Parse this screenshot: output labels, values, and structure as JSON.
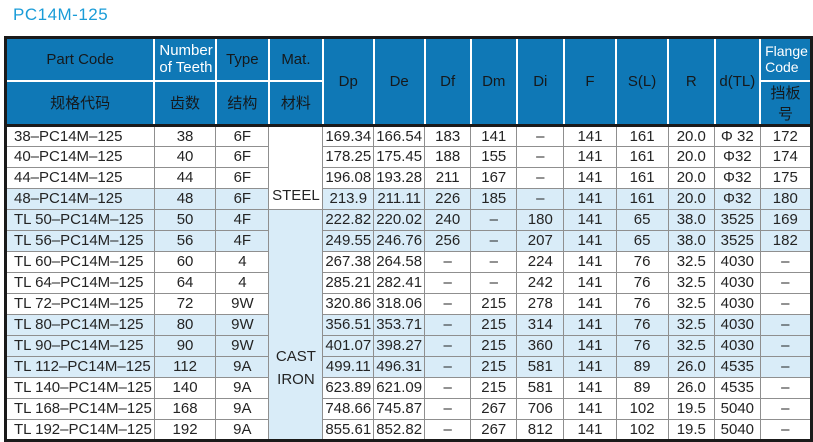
{
  "title": "PC14M-125",
  "colors": {
    "header_blue": "#0f78b6",
    "title_blue": "#1a9cd8",
    "band_blue": "#d9ecf8",
    "grid_line": "#8f8f8f",
    "frame": "#1a1a1a"
  },
  "table": {
    "header": {
      "part_code": {
        "en": "Part Code",
        "zh": "规格代码"
      },
      "teeth": {
        "line1": "Number",
        "line2": "of Teeth",
        "zh": "齿数"
      },
      "type": {
        "en": "Type",
        "zh": "结构"
      },
      "mat": {
        "en": "Mat.",
        "zh": "材料"
      },
      "dp": "Dp",
      "de": "De",
      "df": "Df",
      "dm": "Dm",
      "di": "Di",
      "f": "F",
      "sl": "S(L)",
      "r": "R",
      "dtl": "d(TL)",
      "flange": {
        "line1": "Flange",
        "line2": "Code",
        "zh": "挡板号"
      }
    },
    "column_ids": [
      "part-code",
      "teeth",
      "type",
      "dp",
      "de",
      "df",
      "dm",
      "di",
      "f",
      "sl",
      "r",
      "dtl",
      "flange"
    ],
    "materials": [
      {
        "start": 0,
        "end": 3,
        "lines": [
          "STEEL"
        ],
        "class": "mat-steel"
      },
      {
        "start": 4,
        "end": 14,
        "lines": [
          "CAST",
          "IRON"
        ],
        "class": "mat-cast"
      }
    ],
    "banded_rows": [
      3,
      4,
      5,
      9,
      10,
      11
    ],
    "rows": [
      [
        "38–PC14M–125",
        "38",
        "6F",
        "169.34",
        "166.54",
        "183",
        "141",
        "–",
        "141",
        "161",
        "20.0",
        "Φ 32",
        "172"
      ],
      [
        "40–PC14M–125",
        "40",
        "6F",
        "178.25",
        "175.45",
        "188",
        "155",
        "–",
        "141",
        "161",
        "20.0",
        "Φ32",
        "174"
      ],
      [
        "44–PC14M–125",
        "44",
        "6F",
        "196.08",
        "193.28",
        "211",
        "167",
        "–",
        "141",
        "161",
        "20.0",
        "Φ32",
        "175"
      ],
      [
        "48–PC14M–125",
        "48",
        "6F",
        "213.9",
        "211.11",
        "226",
        "185",
        "–",
        "141",
        "161",
        "20.0",
        "Φ32",
        "180"
      ],
      [
        "TL 50–PC14M–125",
        "50",
        "4F",
        "222.82",
        "220.02",
        "240",
        "–",
        "180",
        "141",
        "65",
        "38.0",
        "3525",
        "169"
      ],
      [
        "TL 56–PC14M–125",
        "56",
        "4F",
        "249.55",
        "246.76",
        "256",
        "–",
        "207",
        "141",
        "65",
        "38.0",
        "3525",
        "182"
      ],
      [
        "TL 60–PC14M–125",
        "60",
        "4",
        "267.38",
        "264.58",
        "–",
        "–",
        "224",
        "141",
        "76",
        "32.5",
        "4030",
        "–"
      ],
      [
        "TL 64–PC14M–125",
        "64",
        "4",
        "285.21",
        "282.41",
        "–",
        "–",
        "242",
        "141",
        "76",
        "32.5",
        "4030",
        "–"
      ],
      [
        "TL 72–PC14M–125",
        "72",
        "9W",
        "320.86",
        "318.06",
        "–",
        "215",
        "278",
        "141",
        "76",
        "32.5",
        "4030",
        "–"
      ],
      [
        "TL 80–PC14M–125",
        "80",
        "9W",
        "356.51",
        "353.71",
        "–",
        "215",
        "314",
        "141",
        "76",
        "32.5",
        "4030",
        "–"
      ],
      [
        "TL 90–PC14M–125",
        "90",
        "9W",
        "401.07",
        "398.27",
        "–",
        "215",
        "360",
        "141",
        "76",
        "32.5",
        "4030",
        "–"
      ],
      [
        "TL 112–PC14M–125",
        "112",
        "9A",
        "499.11",
        "496.31",
        "–",
        "215",
        "581",
        "141",
        "89",
        "26.0",
        "4535",
        "–"
      ],
      [
        "TL 140–PC14M–125",
        "140",
        "9A",
        "623.89",
        "621.09",
        "–",
        "215",
        "581",
        "141",
        "89",
        "26.0",
        "4535",
        "–"
      ],
      [
        "TL 168–PC14M–125",
        "168",
        "9A",
        "748.66",
        "745.87",
        "–",
        "267",
        "706",
        "141",
        "102",
        "19.5",
        "5040",
        "–"
      ],
      [
        "TL 192–PC14M–125",
        "192",
        "9A",
        "855.61",
        "852.82",
        "–",
        "267",
        "812",
        "141",
        "102",
        "19.5",
        "5040",
        "–"
      ]
    ]
  }
}
